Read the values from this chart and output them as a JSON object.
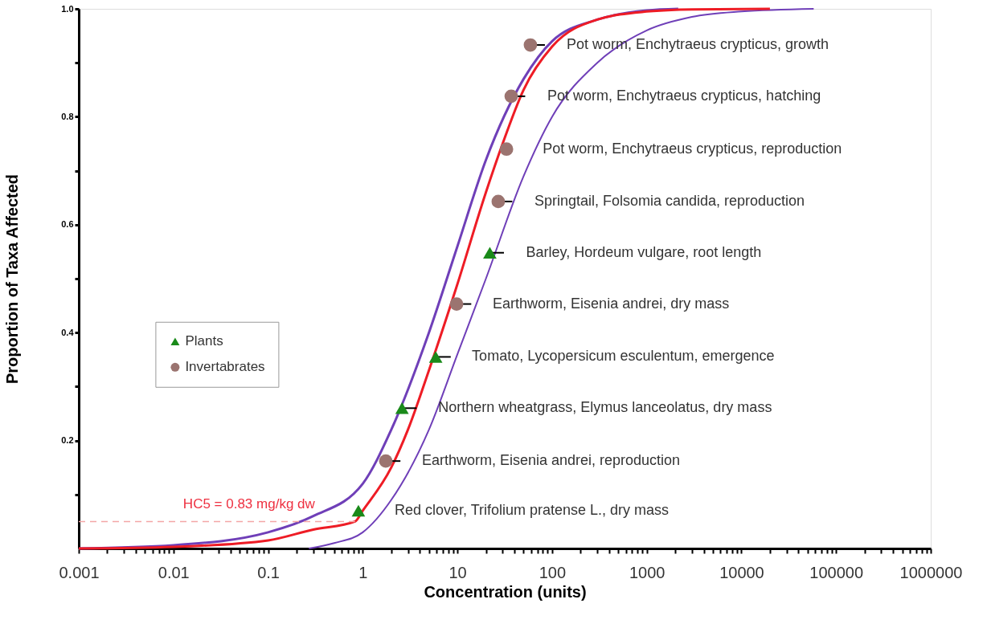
{
  "chart_data": {
    "type": "scatter",
    "xlabel": "Concentration (units)",
    "ylabel": "Proportion of Taxa Affected",
    "log": "x",
    "xlim": [
      0.001,
      1000000
    ],
    "ylim": [
      0,
      1
    ],
    "xticks": [
      0.001,
      0.01,
      0.1,
      1,
      10,
      100,
      1000,
      10000,
      100000,
      1000000,
      {
        "value": 0.002,
        "label": null
      },
      {
        "value": 0.003,
        "label": null
      },
      {
        "value": 0.004,
        "label": null
      },
      {
        "value": 0.005,
        "label": null
      },
      {
        "value": 0.006,
        "label": null
      },
      {
        "value": 0.007,
        "label": null
      },
      {
        "value": 0.008,
        "label": null
      },
      {
        "value": 0.009,
        "label": null
      },
      {
        "value": 0.02,
        "label": null
      },
      {
        "value": 0.03,
        "label": null
      },
      {
        "value": 0.04,
        "label": null
      },
      {
        "value": 0.05,
        "label": null
      },
      {
        "value": 0.06,
        "label": null
      },
      {
        "value": 0.07,
        "label": null
      },
      {
        "value": 0.08,
        "label": null
      },
      {
        "value": 0.09,
        "label": null
      },
      {
        "value": 0.2,
        "label": null
      },
      {
        "value": 0.3,
        "label": null
      },
      {
        "value": 0.4,
        "label": null
      },
      {
        "value": 0.5,
        "label": null
      },
      {
        "value": 0.6,
        "label": null
      },
      {
        "value": 0.7,
        "label": null
      },
      {
        "value": 0.8,
        "label": null
      },
      {
        "value": 0.9,
        "label": null
      },
      {
        "value": 2,
        "label": null
      },
      {
        "value": 3,
        "label": null
      },
      {
        "value": 4,
        "label": null
      },
      {
        "value": 5,
        "label": null
      },
      {
        "value": 6,
        "label": null
      },
      {
        "value": 7,
        "label": null
      },
      {
        "value": 8,
        "label": null
      },
      {
        "value": 9,
        "label": null
      },
      {
        "value": 20,
        "label": null
      },
      {
        "value": 30,
        "label": null
      },
      {
        "value": 40,
        "label": null
      },
      {
        "value": 50,
        "label": null
      },
      {
        "value": 60,
        "label": null
      },
      {
        "value": 70,
        "label": null
      },
      {
        "value": 80,
        "label": null
      },
      {
        "value": 90,
        "label": null
      },
      {
        "value": 200,
        "label": null
      },
      {
        "value": 300,
        "label": null
      },
      {
        "value": 400,
        "label": null
      },
      {
        "value": 500,
        "label": null
      },
      {
        "value": 600,
        "label": null
      },
      {
        "value": 700,
        "label": null
      },
      {
        "value": 800,
        "label": null
      },
      {
        "value": 900,
        "label": null
      },
      {
        "value": 2000,
        "label": null
      },
      {
        "value": 3000,
        "label": null
      },
      {
        "value": 4000,
        "label": null
      },
      {
        "value": 5000,
        "label": null
      },
      {
        "value": 6000,
        "label": null
      },
      {
        "value": 7000,
        "label": null
      },
      {
        "value": 8000,
        "label": null
      },
      {
        "value": 9000,
        "label": null
      },
      {
        "value": 20000,
        "label": null
      },
      {
        "value": 30000,
        "label": null
      },
      {
        "value": 40000,
        "label": null
      },
      {
        "value": 50000,
        "label": null
      },
      {
        "value": 60000,
        "label": null
      },
      {
        "value": 70000,
        "label": null
      },
      {
        "value": 80000,
        "label": null
      },
      {
        "value": 90000,
        "label": null
      },
      {
        "value": 200000,
        "label": null
      },
      {
        "value": 300000,
        "label": null
      },
      {
        "value": 400000,
        "label": null
      },
      {
        "value": 500000,
        "label": null
      },
      {
        "value": 600000,
        "label": null
      },
      {
        "value": 700000,
        "label": null
      },
      {
        "value": 800000,
        "label": null
      },
      {
        "value": 900000,
        "label": null
      }
    ],
    "yticks": [
      0.2,
      0.4,
      0.6,
      0.8,
      {
        "value": 1,
        "label": "1.0"
      },
      {
        "value": 0.1,
        "label": null
      },
      {
        "value": 0.3,
        "label": null
      },
      {
        "value": 0.5,
        "label": null
      },
      {
        "value": 0.7,
        "label": null
      },
      {
        "value": 0.9,
        "label": null
      }
    ],
    "grid": false,
    "legend": "left",
    "series": [
      {
        "type": "line",
        "color": "#6f3fb8",
        "x": [
          0.001,
          0.01,
          0.1,
          0.3,
          1,
          2,
          5,
          10,
          20,
          50,
          100,
          300,
          1000,
          2150
        ],
        "values": [
          0,
          0.006,
          0.03,
          0.06,
          0.12,
          0.22,
          0.4,
          0.56,
          0.72,
          0.87,
          0.94,
          0.98,
          0.997,
          1
        ]
      },
      {
        "type": "line",
        "color": "#6f3fb8",
        "x": [
          0.27,
          0.5,
          1,
          2,
          5,
          10,
          20,
          50,
          100,
          300,
          1000,
          3000,
          10000,
          58000
        ],
        "values": [
          0,
          0.01,
          0.03,
          0.09,
          0.22,
          0.36,
          0.5,
          0.69,
          0.8,
          0.9,
          0.96,
          0.985,
          0.995,
          1
        ]
      },
      {
        "type": "line",
        "color": "#ee1c25",
        "x": [
          0.001,
          0.01,
          0.1,
          0.3,
          0.83,
          1,
          2,
          3,
          5,
          10,
          20,
          30,
          50,
          100,
          300,
          1000,
          3000,
          20000
        ],
        "values": [
          0,
          0.003,
          0.015,
          0.035,
          0.05,
          0.07,
          0.15,
          0.22,
          0.33,
          0.49,
          0.66,
          0.75,
          0.85,
          0.93,
          0.98,
          0.995,
          0.999,
          1
        ]
      },
      {
        "type": "line",
        "name": "HC5 = 0.83 mg/kg dw",
        "color": "#f4a6a6",
        "line_style": "dashed",
        "x": [
          0.001,
          0.83
        ],
        "values": [
          0.05,
          0.05
        ]
      },
      {
        "name": "Plants",
        "color": "#1a8a1a",
        "marker": "triangle",
        "x": [
          0.9,
          2.6,
          5.9,
          22
        ],
        "values": [
          0.07,
          0.26,
          0.355,
          0.548
        ],
        "xerrors": [
          null,
          [
            2.6,
            3.7
          ],
          [
            5.9,
            8.5
          ],
          [
            22,
            31
          ]
        ]
      },
      {
        "name": "Invertabrates",
        "color": "#9b7470",
        "marker": "circle",
        "x": [
          1.75,
          9.8,
          27,
          33,
          37,
          59
        ],
        "values": [
          0.162,
          0.453,
          0.643,
          0.74,
          0.838,
          0.933
        ],
        "xerrors": [
          [
            1.75,
            2.5
          ],
          [
            9.8,
            14
          ],
          [
            27,
            38
          ],
          null,
          [
            37,
            52
          ],
          [
            59,
            84
          ]
        ]
      }
    ],
    "annotations": [
      {
        "text": "Red clover, Trifolium pratense L., dry mass",
        "x": 0.9,
        "y": 0.07
      },
      {
        "text": "Earthworm, Eisenia andrei, reproduction",
        "x": 1.75,
        "y": 0.162
      },
      {
        "text": "Northern wheatgrass, Elymus lanceolatus, dry mass",
        "x": 2.6,
        "y": 0.26
      },
      {
        "text": "Tomato, Lycopersicum esculentum, emergence",
        "x": 5.9,
        "y": 0.355
      },
      {
        "text": "Earthworm, Eisenia andrei, dry mass",
        "x": 9.8,
        "y": 0.453
      },
      {
        "text": "Barley, Hordeum vulgare, root length",
        "x": 22,
        "y": 0.548
      },
      {
        "text": "Springtail, Folsomia candida, reproduction",
        "x": 27,
        "y": 0.643
      },
      {
        "text": "Pot worm, Enchytraeus crypticus, reproduction",
        "x": 33,
        "y": 0.74
      },
      {
        "text": "Pot worm, Enchytraeus crypticus, hatching",
        "x": 37,
        "y": 0.838
      },
      {
        "text": "Pot worm, Enchytraeus crypticus, growth",
        "x": 59,
        "y": 0.933
      }
    ]
  }
}
